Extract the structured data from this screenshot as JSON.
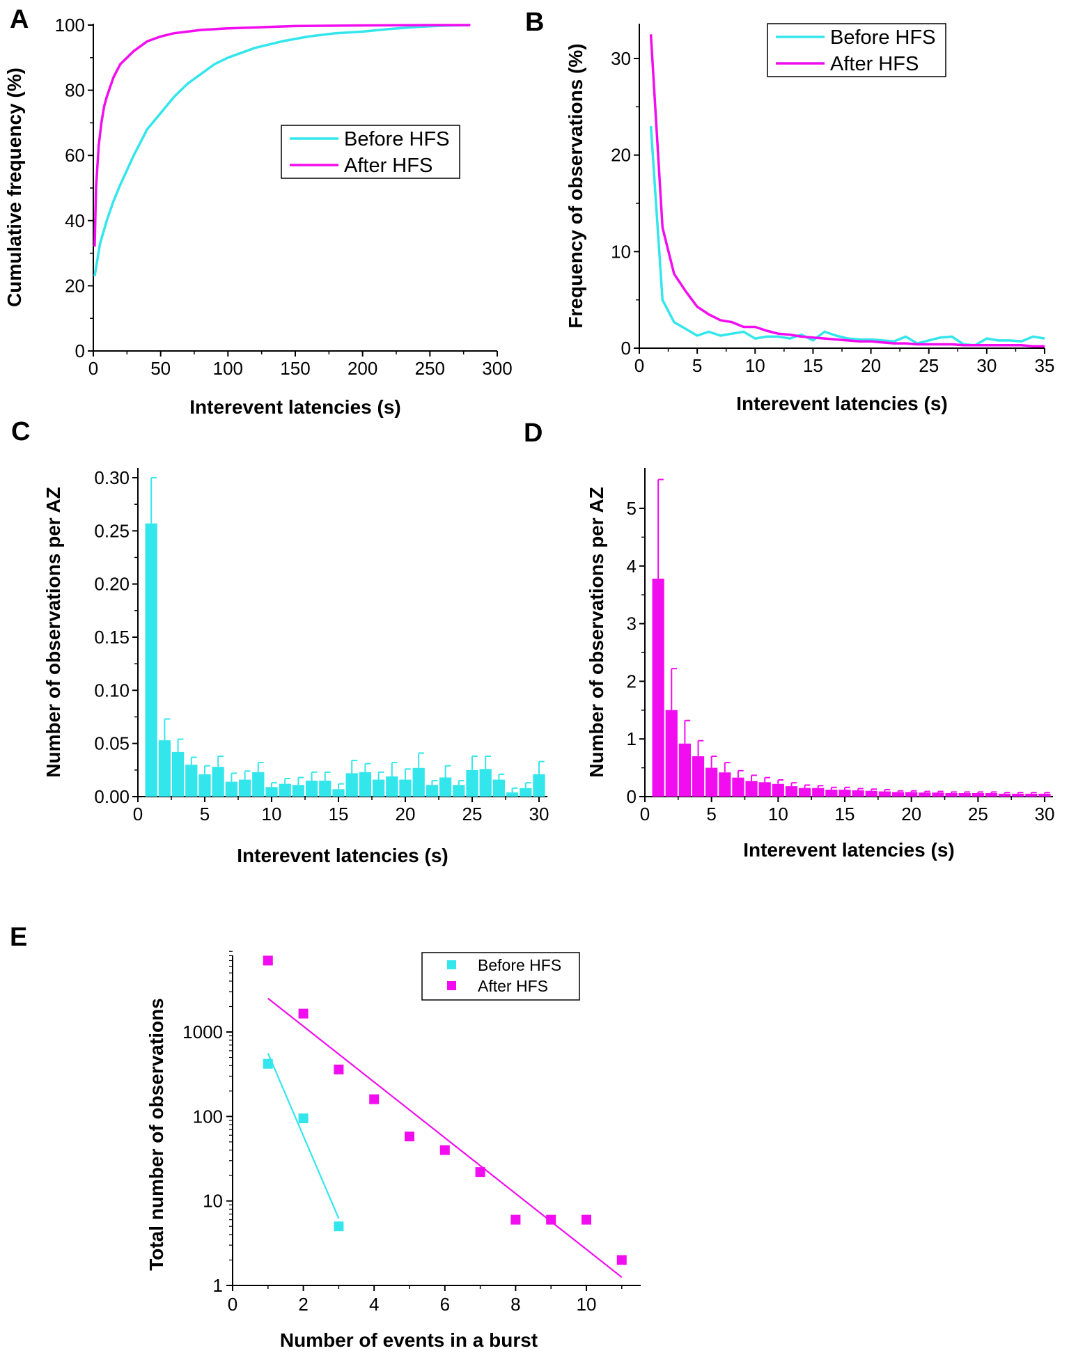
{
  "colors": {
    "before": "#33e6ec",
    "after": "#f20cf0"
  },
  "panels": {
    "A": {
      "label": "A",
      "chart_data": {
        "type": "line",
        "xlabel": "Interevent latencies (s)",
        "ylabel": "Cumulative frequency (%)",
        "xlim": [
          0,
          300
        ],
        "ylim": [
          0,
          100
        ],
        "xticks": [
          "0",
          "50",
          "100",
          "150",
          "200",
          "250",
          "300"
        ],
        "yticks": [
          "0",
          "20",
          "40",
          "60",
          "80",
          "100"
        ],
        "legend": [
          "Before HFS",
          "After HFS"
        ],
        "series": [
          {
            "name": "Before HFS",
            "x": [
              1,
              5,
              10,
              15,
              20,
              30,
              40,
              50,
              60,
              70,
              80,
              90,
              100,
              120,
              140,
              160,
              180,
              200,
              220,
              240,
              260,
              280
            ],
            "y": [
              23,
              33,
              40,
              46,
              51,
              60,
              68,
              73,
              78,
              82,
              85,
              88,
              90,
              93,
              95,
              96.5,
              97.5,
              98,
              98.8,
              99.4,
              99.8,
              100
            ]
          },
          {
            "name": "After HFS",
            "x": [
              1,
              2,
              4,
              6,
              8,
              10,
              15,
              20,
              30,
              40,
              50,
              60,
              80,
              100,
              150,
              200,
              250,
              280
            ],
            "y": [
              32,
              50,
              63,
              70,
              75,
              78,
              84,
              88,
              92,
              95,
              96.5,
              97.5,
              98.5,
              99,
              99.7,
              99.9,
              100,
              100
            ]
          }
        ]
      }
    },
    "B": {
      "label": "B",
      "chart_data": {
        "type": "line",
        "xlabel": "Interevent latencies (s)",
        "ylabel": "Frequency of observations (%)",
        "xlim": [
          0,
          35
        ],
        "ylim": [
          0,
          33
        ],
        "xticks": [
          "0",
          "5",
          "10",
          "15",
          "20",
          "25",
          "30",
          "35"
        ],
        "yticks": [
          "0",
          "10",
          "20",
          "30"
        ],
        "legend": [
          "Before HFS",
          "After HFS"
        ],
        "series": [
          {
            "name": "Before HFS",
            "x": [
              1,
              2,
              3,
              4,
              5,
              6,
              7,
              8,
              9,
              10,
              11,
              12,
              13,
              14,
              15,
              16,
              17,
              18,
              19,
              20,
              21,
              22,
              23,
              24,
              25,
              26,
              27,
              28,
              29,
              30,
              31,
              32,
              33,
              34,
              35
            ],
            "y": [
              23,
              5,
              2.7,
              2,
              1.3,
              1.7,
              1.3,
              1.5,
              1.7,
              1,
              1.2,
              1.2,
              1,
              1.4,
              0.8,
              1.7,
              1.3,
              1,
              0.9,
              0.9,
              0.8,
              0.7,
              1.2,
              0.5,
              0.8,
              1.1,
              1.2,
              0.4,
              0.3,
              1,
              0.8,
              0.8,
              0.7,
              1.2,
              1
            ]
          },
          {
            "name": "After HFS",
            "x": [
              1,
              2,
              3,
              4,
              5,
              6,
              7,
              8,
              9,
              10,
              11,
              12,
              13,
              14,
              15,
              16,
              17,
              18,
              19,
              20,
              21,
              22,
              23,
              24,
              25,
              26,
              27,
              28,
              29,
              30,
              31,
              32,
              33,
              34,
              35
            ],
            "y": [
              32.5,
              12.5,
              7.7,
              5.9,
              4.3,
              3.5,
              2.9,
              2.7,
              2.2,
              2.2,
              1.8,
              1.5,
              1.4,
              1.2,
              1.1,
              1,
              0.9,
              0.8,
              0.7,
              0.7,
              0.6,
              0.5,
              0.5,
              0.4,
              0.4,
              0.4,
              0.4,
              0.3,
              0.3,
              0.3,
              0.3,
              0.3,
              0.3,
              0.2,
              0.2
            ]
          }
        ]
      }
    },
    "C": {
      "label": "C",
      "chart_data": {
        "type": "bar",
        "xlabel": "Interevent latencies (s)",
        "ylabel": "Number of observations per AZ",
        "xlim": [
          0,
          30
        ],
        "ylim": [
          0,
          0.3
        ],
        "xticks": [
          "0",
          "5",
          "10",
          "15",
          "20",
          "25",
          "30"
        ],
        "yticks": [
          "0.00",
          "0.05",
          "0.10",
          "0.15",
          "0.20",
          "0.25",
          "0.30"
        ],
        "x": [
          1,
          2,
          3,
          4,
          5,
          6,
          7,
          8,
          9,
          10,
          11,
          12,
          13,
          14,
          15,
          16,
          17,
          18,
          19,
          20,
          21,
          22,
          23,
          24,
          25,
          26,
          27,
          28,
          29,
          30
        ],
        "values": [
          0.257,
          0.053,
          0.042,
          0.03,
          0.021,
          0.028,
          0.014,
          0.016,
          0.023,
          0.009,
          0.012,
          0.011,
          0.015,
          0.015,
          0.007,
          0.022,
          0.023,
          0.016,
          0.019,
          0.016,
          0.027,
          0.011,
          0.018,
          0.011,
          0.025,
          0.026,
          0.016,
          0.004,
          0.008,
          0.021
        ],
        "errors": [
          0.043,
          0.02,
          0.012,
          0.007,
          0.008,
          0.01,
          0.008,
          0.008,
          0.009,
          0.004,
          0.005,
          0.007,
          0.008,
          0.008,
          0.005,
          0.012,
          0.008,
          0.007,
          0.013,
          0.01,
          0.014,
          0.004,
          0.011,
          0.004,
          0.013,
          0.012,
          0.005,
          0.004,
          0.005,
          0.012
        ]
      }
    },
    "D": {
      "label": "D",
      "chart_data": {
        "type": "bar",
        "xlabel": "Interevent latencies (s)",
        "ylabel": "Number of observations per AZ",
        "xlim": [
          0,
          30
        ],
        "ylim": [
          0,
          5.8
        ],
        "xticks": [
          "0",
          "5",
          "10",
          "15",
          "20",
          "25",
          "30"
        ],
        "yticks": [
          "0",
          "1",
          "2",
          "3",
          "4",
          "5"
        ],
        "x": [
          1,
          2,
          3,
          4,
          5,
          6,
          7,
          8,
          9,
          10,
          11,
          12,
          13,
          14,
          15,
          16,
          17,
          18,
          19,
          20,
          21,
          22,
          23,
          24,
          25,
          26,
          27,
          28,
          29,
          30
        ],
        "values": [
          3.78,
          1.5,
          0.92,
          0.7,
          0.5,
          0.42,
          0.33,
          0.27,
          0.25,
          0.22,
          0.18,
          0.15,
          0.15,
          0.12,
          0.12,
          0.11,
          0.1,
          0.09,
          0.08,
          0.08,
          0.07,
          0.07,
          0.06,
          0.06,
          0.06,
          0.06,
          0.05,
          0.05,
          0.05,
          0.05
        ],
        "errors": [
          1.72,
          0.72,
          0.4,
          0.27,
          0.2,
          0.17,
          0.12,
          0.1,
          0.08,
          0.07,
          0.06,
          0.05,
          0.04,
          0.04,
          0.04,
          0.03,
          0.03,
          0.03,
          0.02,
          0.02,
          0.02,
          0.02,
          0.02,
          0.02,
          0.02,
          0.02,
          0.02,
          0.02,
          0.02,
          0.02
        ]
      }
    },
    "E": {
      "label": "E",
      "chart_data": {
        "type": "scatter",
        "yscale": "log",
        "xlabel": "Number of events in a burst",
        "ylabel": "Total number of observations",
        "xlim": [
          0,
          11.6
        ],
        "ylim": [
          1,
          9000
        ],
        "xticks": [
          "0",
          "2",
          "4",
          "6",
          "8",
          "10"
        ],
        "yticks": [
          "1",
          "10",
          "100",
          "1000"
        ],
        "legend": [
          "Before HFS",
          "After HFS"
        ],
        "series": [
          {
            "name": "Before HFS",
            "x": [
              1,
              2,
              3
            ],
            "y": [
              420,
              95,
              5
            ],
            "fit": {
              "x": [
                1,
                3
              ],
              "y": [
                560,
                6.2
              ]
            }
          },
          {
            "name": "After HFS",
            "x": [
              1,
              2,
              3,
              4,
              5,
              6,
              7,
              8,
              9,
              10,
              11
            ],
            "y": [
              7000,
              1650,
              360,
              160,
              58,
              40,
              22,
              6,
              6,
              6,
              2
            ],
            "fit": {
              "x": [
                1,
                11
              ],
              "y": [
                2500,
                1.25
              ]
            }
          }
        ]
      }
    }
  }
}
